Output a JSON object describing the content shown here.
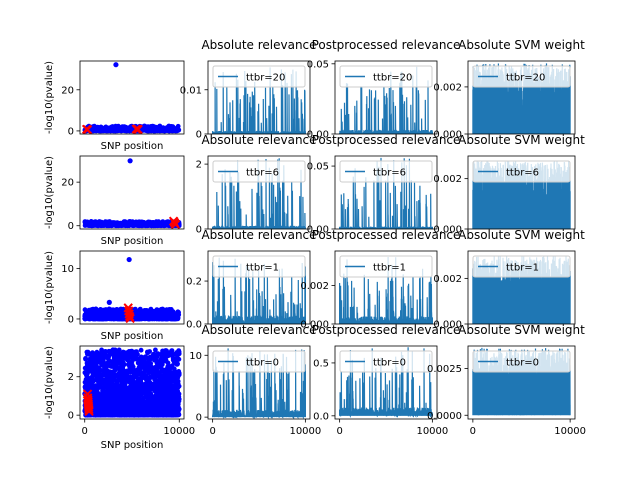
{
  "figure": {
    "background": "#ffffff"
  },
  "colors": {
    "line": "#1f77b4",
    "manhattan": "#0000ff",
    "causal": "#ff0000",
    "legend_edge": "#cccccc"
  },
  "chart_data": [
    {
      "id": "manhattan-r1",
      "type": "scatter",
      "xlabel": "SNP position",
      "ylabel": "-log10(pvalue)",
      "xlim": [
        -500,
        10500
      ],
      "ylim": [
        -1.5,
        34
      ],
      "yticks": [
        0,
        20
      ],
      "xticks": [],
      "series": [
        {
          "role": "snps",
          "color": "#0000ff",
          "n_points": 420,
          "baseline_max": 2.4,
          "points": [
            [
              3300,
              32.2
            ]
          ]
        },
        {
          "role": "causal",
          "color": "#ff0000",
          "marker": "x",
          "points": [
            [
              200,
              0.8
            ],
            [
              300,
              0.6
            ],
            [
              5450,
              0.9
            ],
            [
              5550,
              0.8
            ],
            [
              5650,
              0.7
            ]
          ]
        }
      ]
    },
    {
      "id": "relevance-r1",
      "type": "line",
      "title": "Absolute relevance",
      "legend": "ttbr=20",
      "xlim": [
        -500,
        10500
      ],
      "ylim": [
        0,
        0.0165
      ],
      "yticks": [
        0,
        0.01
      ],
      "ytick_labels": [
        "0",
        "0.01"
      ],
      "peak": 0.0159,
      "noise_floor": 0.0007
    },
    {
      "id": "postprocessed-r1",
      "type": "line",
      "title": "Postprocessed relevance",
      "legend": "ttbr=20",
      "xlim": [
        -500,
        10500
      ],
      "ylim": [
        0,
        0.052
      ],
      "yticks": [
        0,
        0.05
      ],
      "ytick_labels": [
        "0.00",
        "0.05"
      ],
      "peak": 0.05,
      "noise_floor": 0.003
    },
    {
      "id": "svm-r1",
      "type": "line",
      "title": "Absolute SVM weight",
      "legend": "ttbr=20",
      "xlim": [
        -500,
        10500
      ],
      "ylim": [
        0,
        0.0031
      ],
      "yticks": [
        0,
        0.002
      ],
      "ytick_labels": [
        "0.000",
        "0.002"
      ],
      "peak": 0.003,
      "dense": true
    },
    {
      "id": "manhattan-r2",
      "type": "scatter",
      "xlabel": "SNP position",
      "ylabel": "-log10(pvalue)",
      "xlim": [
        -500,
        10500
      ],
      "ylim": [
        -1.5,
        32
      ],
      "yticks": [
        0,
        20
      ],
      "xticks": [],
      "series": [
        {
          "role": "snps",
          "color": "#0000ff",
          "n_points": 420,
          "baseline_max": 2.0,
          "points": [
            [
              4800,
              29.8
            ]
          ]
        },
        {
          "role": "causal",
          "color": "#ff0000",
          "marker": "x",
          "points": [
            [
              9400,
              2.1
            ],
            [
              9500,
              1.4
            ],
            [
              9600,
              0.6
            ]
          ]
        }
      ]
    },
    {
      "id": "relevance-r2",
      "type": "line",
      "title": "Absolute relevance",
      "legend": "ttbr=6",
      "xlim": [
        -500,
        10500
      ],
      "ylim": [
        0,
        2.25
      ],
      "yticks": [
        0,
        2
      ],
      "ytick_labels": [
        "0",
        "2"
      ],
      "peak": 2.2,
      "noise_floor": 0.1
    },
    {
      "id": "postprocessed-r2",
      "type": "line",
      "title": "Postprocessed relevance",
      "legend": "ttbr=6",
      "xlim": [
        -500,
        10500
      ],
      "ylim": [
        0,
        0.058
      ],
      "yticks": [
        0,
        0.05
      ],
      "ytick_labels": [
        "0.00",
        "0.05"
      ],
      "peak": 0.057,
      "noise_floor": 0.002
    },
    {
      "id": "svm-r2",
      "type": "line",
      "title": "Absolute SVM weight",
      "legend": "ttbr=6",
      "xlim": [
        -500,
        10500
      ],
      "ylim": [
        0,
        0.0029
      ],
      "yticks": [
        0,
        0.002
      ],
      "ytick_labels": [
        "0.000",
        "0.002"
      ],
      "peak": 0.0027,
      "dense": true
    },
    {
      "id": "manhattan-r3",
      "type": "scatter",
      "xlabel": "SNP position",
      "ylabel": "-log10(pvalue)",
      "xlim": [
        -500,
        10500
      ],
      "ylim": [
        -1,
        13.5
      ],
      "yticks": [
        0,
        10
      ],
      "xticks": [],
      "series": [
        {
          "role": "snps",
          "color": "#0000ff",
          "n_points": 650,
          "baseline_max": 2.0,
          "points": [
            [
              4700,
              11.8
            ],
            [
              2600,
              3.3
            ]
          ]
        },
        {
          "role": "causal",
          "color": "#ff0000",
          "marker": "x",
          "points": [
            [
              4600,
              2.2
            ],
            [
              4650,
              1.6
            ],
            [
              4700,
              1.0
            ],
            [
              4750,
              0.5
            ],
            [
              4800,
              0.1
            ]
          ]
        }
      ]
    },
    {
      "id": "relevance-r3",
      "type": "line",
      "title": "Absolute relevance",
      "legend": "ttbr=1",
      "xlim": [
        -500,
        10500
      ],
      "ylim": [
        0,
        0.34
      ],
      "yticks": [
        0,
        0.2
      ],
      "ytick_labels": [
        "0.0",
        "0.2"
      ],
      "peak": 0.31,
      "noise_floor": 0.04
    },
    {
      "id": "postprocessed-r3",
      "type": "line",
      "title": "Postprocessed relevance",
      "legend": "ttbr=1",
      "xlim": [
        -500,
        10500
      ],
      "ylim": [
        0,
        0.0038
      ],
      "yticks": [
        0,
        0.002
      ],
      "ytick_labels": [
        "0.000",
        "0.002"
      ],
      "peak": 0.0035,
      "noise_floor": 0.0004
    },
    {
      "id": "svm-r3",
      "type": "line",
      "title": "Absolute SVM weight",
      "legend": "ttbr=1",
      "xlim": [
        -500,
        10500
      ],
      "ylim": [
        0,
        0.0032
      ],
      "yticks": [
        0,
        0.002
      ],
      "ytick_labels": [
        "0.000",
        "0.002"
      ],
      "peak": 0.003,
      "dense": true
    },
    {
      "id": "manhattan-r4",
      "type": "scatter",
      "xlabel": "SNP position",
      "ylabel": "-log10(pvalue)",
      "xlim": [
        -500,
        10500
      ],
      "ylim": [
        -0.2,
        3.6
      ],
      "yticks": [
        0,
        2
      ],
      "xticks": [
        0,
        10000
      ],
      "xtick_labels": [
        "0",
        "10000"
      ],
      "series": [
        {
          "role": "snps",
          "color": "#0000ff",
          "n_points": 2400,
          "baseline_max": 3.4,
          "points": []
        },
        {
          "role": "causal",
          "color": "#ff0000",
          "marker": "x",
          "points": [
            [
              300,
              1.1
            ],
            [
              320,
              0.9
            ],
            [
              340,
              0.8
            ],
            [
              360,
              0.7
            ],
            [
              380,
              0.6
            ],
            [
              400,
              0.5
            ],
            [
              420,
              0.4
            ],
            [
              440,
              0.3
            ],
            [
              460,
              0.2
            ]
          ]
        }
      ]
    },
    {
      "id": "relevance-r4",
      "type": "line",
      "title": "Absolute relevance",
      "legend": "ttbr=0",
      "xlim": [
        -500,
        10500
      ],
      "ylim": [
        -0.3,
        11.5
      ],
      "yticks": [
        0,
        10
      ],
      "ytick_labels": [
        "0",
        "10"
      ],
      "xticks": [
        0,
        10000
      ],
      "xtick_labels": [
        "0",
        "10000"
      ],
      "peak": 11.2,
      "noise_floor": 1.2
    },
    {
      "id": "postprocessed-r4",
      "type": "line",
      "title": "Postprocessed relevance",
      "legend": "ttbr=0",
      "xlim": [
        -500,
        10500
      ],
      "ylim": [
        -0.03,
        0.66
      ],
      "yticks": [
        0,
        0.5
      ],
      "ytick_labels": [
        "0.0",
        "0.5"
      ],
      "xticks": [
        0,
        10000
      ],
      "xtick_labels": [
        "0",
        "10000"
      ],
      "peak": 0.65,
      "noise_floor": 0.08
    },
    {
      "id": "svm-r4",
      "type": "line",
      "title": "Absolute SVM weight",
      "legend": "ttbr=0",
      "xlim": [
        -500,
        10500
      ],
      "ylim": [
        -0.0002,
        0.0037
      ],
      "yticks": [
        0,
        0.0025
      ],
      "ytick_labels": [
        "0.0000",
        "0.0025"
      ],
      "xticks": [
        0,
        10000
      ],
      "xtick_labels": [
        "0",
        "10000"
      ],
      "peak": 0.0036,
      "dense": true
    }
  ]
}
